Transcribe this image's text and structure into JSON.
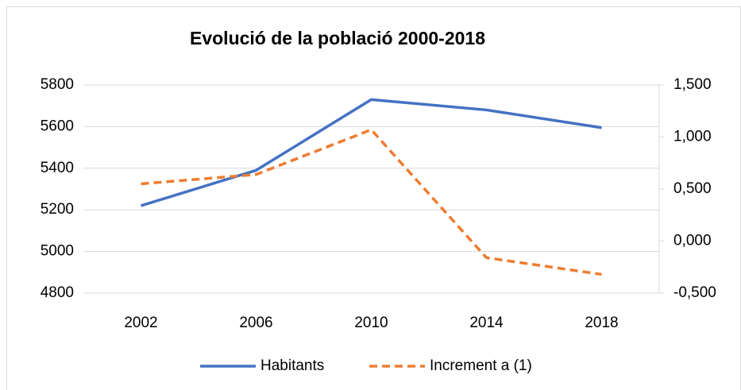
{
  "chart_data": {
    "type": "line",
    "title": "Evolució de la població 2000-2018",
    "categories": [
      "2002",
      "2006",
      "2010",
      "2014",
      "2018"
    ],
    "series": [
      {
        "name": "Habitants",
        "color": "#4472c4",
        "values": [
          5220,
          5390,
          5730,
          5680,
          5595
        ]
      },
      {
        "name": "Increment a (1)",
        "color": "#ed7d31",
        "axis": "y2",
        "dashed": true,
        "values": [
          0.55,
          0.64,
          1.07,
          -0.16,
          -0.32
        ]
      }
    ],
    "ylim": [
      4800,
      5800
    ],
    "yticks": [
      4800,
      5000,
      5200,
      5400,
      5600,
      5800
    ],
    "y2lim": [
      -0.5,
      1.5
    ],
    "y2ticks": [
      {
        "value": -0.5,
        "label": "-0,500"
      },
      {
        "value": 0,
        "label": "0,000"
      },
      {
        "value": 0.5,
        "label": "0,500"
      },
      {
        "value": 1,
        "label": "1,000"
      },
      {
        "value": 1.5,
        "label": "1,500"
      }
    ],
    "grid": true,
    "legend": "bottom"
  }
}
